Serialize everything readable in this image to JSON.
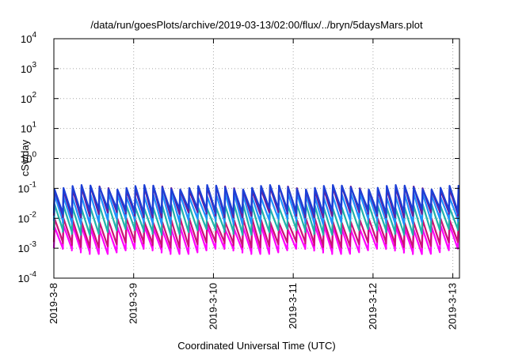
{
  "chart_data": {
    "type": "line",
    "title": "/data/run/goesPlots/archive/2019-03-13/02:00/flux/../bryn/5daysMars.plot",
    "xlabel": "Coordinated Universal Time (UTC)",
    "ylabel": "cSv/day",
    "yscale": "log",
    "ylim": [
      0.0001,
      10000
    ],
    "y_ticks": [
      {
        "base": "10",
        "exp": "4"
      },
      {
        "base": "10",
        "exp": "3"
      },
      {
        "base": "10",
        "exp": "2"
      },
      {
        "base": "10",
        "exp": "1"
      },
      {
        "base": "10",
        "exp": "0"
      },
      {
        "base": "10",
        "exp": "-1"
      },
      {
        "base": "10",
        "exp": "-2"
      },
      {
        "base": "10",
        "exp": "-3"
      },
      {
        "base": "10",
        "exp": "-4"
      }
    ],
    "xlim": [
      "2019-03-08",
      "2019-03-13 02:00"
    ],
    "x_ticks": [
      "2019-3-8",
      "2019-3-9",
      "2019-3-10",
      "2019-3-11",
      "2019-3-12",
      "2019-3-13"
    ],
    "grid": true,
    "legend": "none",
    "cycle_hours": 2.7,
    "series": [
      {
        "color": "#ff00ff",
        "low": 0.0009,
        "high": 0.006
      },
      {
        "color": "#cc1177",
        "low": 0.0015,
        "high": 0.01
      },
      {
        "color": "#20b2aa",
        "low": 0.004,
        "high": 0.03
      },
      {
        "color": "#1e90ff",
        "low": 0.009,
        "high": 0.07
      },
      {
        "color": "#6a1b9a",
        "low": 0.015,
        "high": 0.12
      },
      {
        "color": "#1c3fd6",
        "low": 0.02,
        "high": 0.13
      }
    ]
  }
}
